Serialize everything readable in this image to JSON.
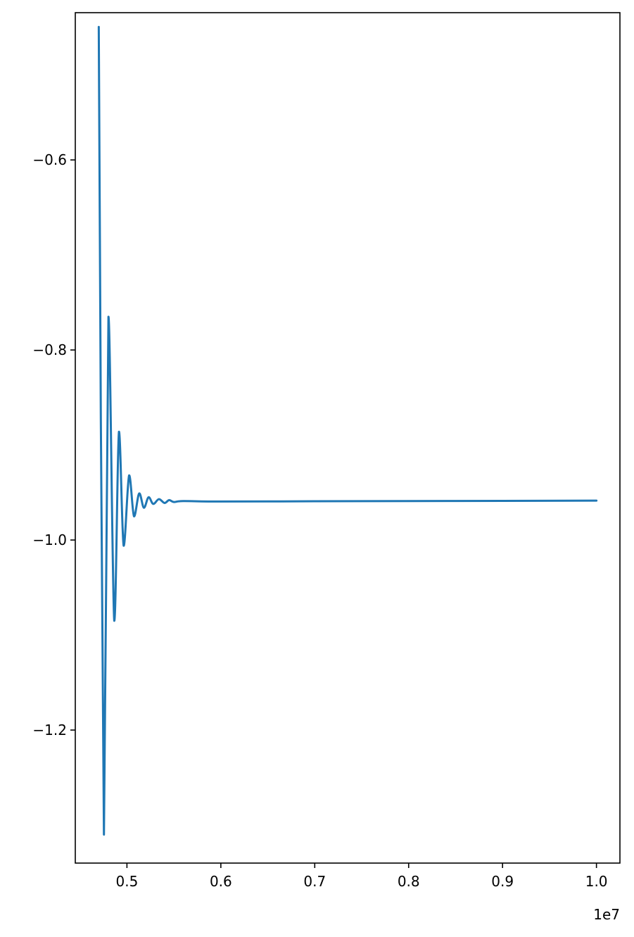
{
  "chart_data": {
    "type": "line",
    "title": "",
    "xlabel": "",
    "ylabel": "",
    "x_offset_label": "1e7",
    "xlim": [
      0.445,
      1.025
    ],
    "ylim": [
      -1.34,
      -0.445
    ],
    "xticks": [
      0.5,
      0.6,
      0.7,
      0.8,
      0.9,
      1.0
    ],
    "xtick_labels": [
      "0.5",
      "0.6",
      "0.7",
      "0.8",
      "0.9",
      "1.0"
    ],
    "yticks": [
      -0.6,
      -0.8,
      -1.0,
      -1.2
    ],
    "ytick_labels": [
      "−0.6",
      "−0.8",
      "−1.0",
      "−1.2"
    ],
    "grid": false,
    "series": [
      {
        "color": "#1f77b4",
        "x": [
          0.47,
          0.4755,
          0.4803,
          0.4865,
          0.4915,
          0.4965,
          0.5023,
          0.5075,
          0.513,
          0.518,
          0.523,
          0.528,
          0.534,
          0.54,
          0.545,
          0.55,
          0.56,
          0.6,
          0.7,
          0.8,
          0.9,
          1.0
        ],
        "y": [
          -0.46,
          -1.31,
          -0.765,
          -1.085,
          -0.886,
          -1.006,
          -0.932,
          -0.975,
          -0.951,
          -0.966,
          -0.955,
          -0.962,
          -0.957,
          -0.961,
          -0.958,
          -0.96,
          -0.959,
          -0.9595,
          -0.9592,
          -0.959,
          -0.9588,
          -0.9585
        ]
      }
    ]
  }
}
